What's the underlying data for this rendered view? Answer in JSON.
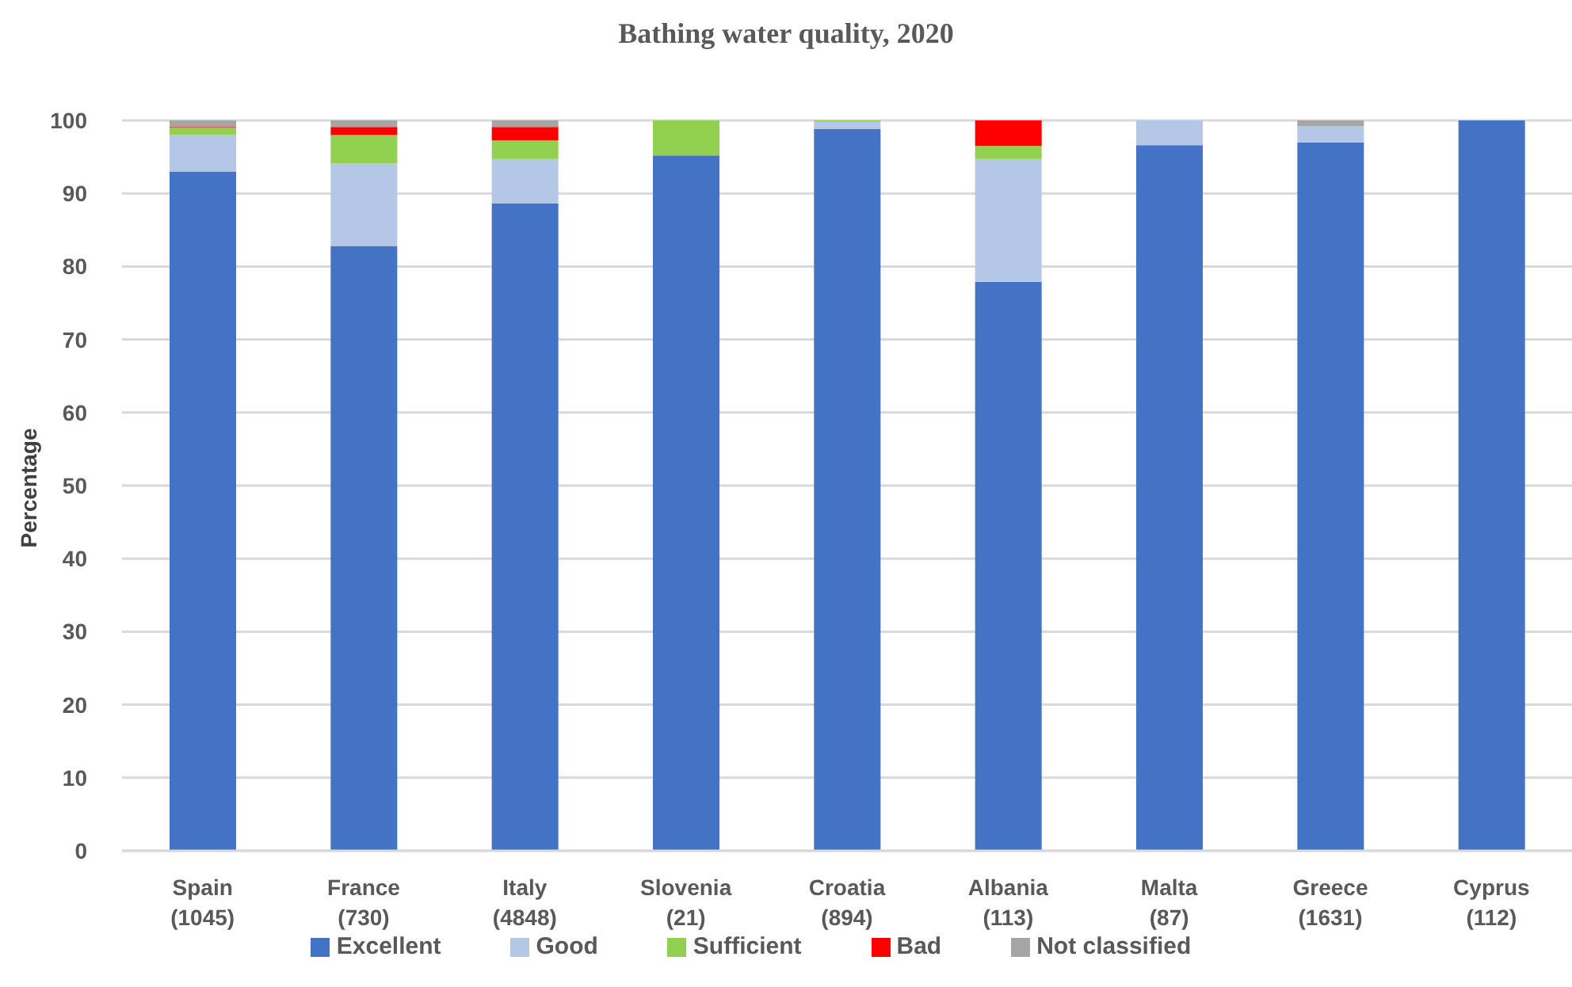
{
  "chart_data": {
    "type": "bar",
    "title": "Bathing water quality, 2020",
    "ylabel": "Percentage",
    "categories": [
      "Spain (1045)",
      "France (730)",
      "Italy (4848)",
      "Slovenia (21)",
      "Croatia (894)",
      "Albania (113)",
      "Malta (87)",
      "Greece (1631)",
      "Cyprus (112)"
    ],
    "series": [
      {
        "name": "Excellent",
        "color": "#4472c4",
        "values": [
          93.0,
          82.8,
          88.6,
          95.2,
          98.8,
          77.9,
          96.6,
          97.0,
          100
        ]
      },
      {
        "name": "Good",
        "color": "#b4c7e7",
        "values": [
          5.0,
          11.3,
          6.1,
          0,
          1.0,
          16.8,
          3.4,
          2.2,
          0
        ]
      },
      {
        "name": "Sufficient",
        "color": "#92d050",
        "values": [
          1.0,
          3.9,
          2.6,
          4.8,
          0.2,
          1.8,
          0,
          0,
          0
        ]
      },
      {
        "name": "Bad",
        "color": "#ff0000",
        "values": [
          0.1,
          1.1,
          1.8,
          0,
          0,
          3.5,
          0,
          0,
          0
        ]
      },
      {
        "name": "Not classified",
        "color": "#a5a5a5",
        "values": [
          0.9,
          0.9,
          0.9,
          0,
          0,
          0,
          0,
          0.8,
          0
        ]
      }
    ],
    "stacked": true,
    "ylim": [
      0,
      100
    ],
    "yticks": [
      0,
      10,
      20,
      30,
      40,
      50,
      60,
      70,
      80,
      90,
      100
    ],
    "grid": "y",
    "legend": "bottom"
  }
}
